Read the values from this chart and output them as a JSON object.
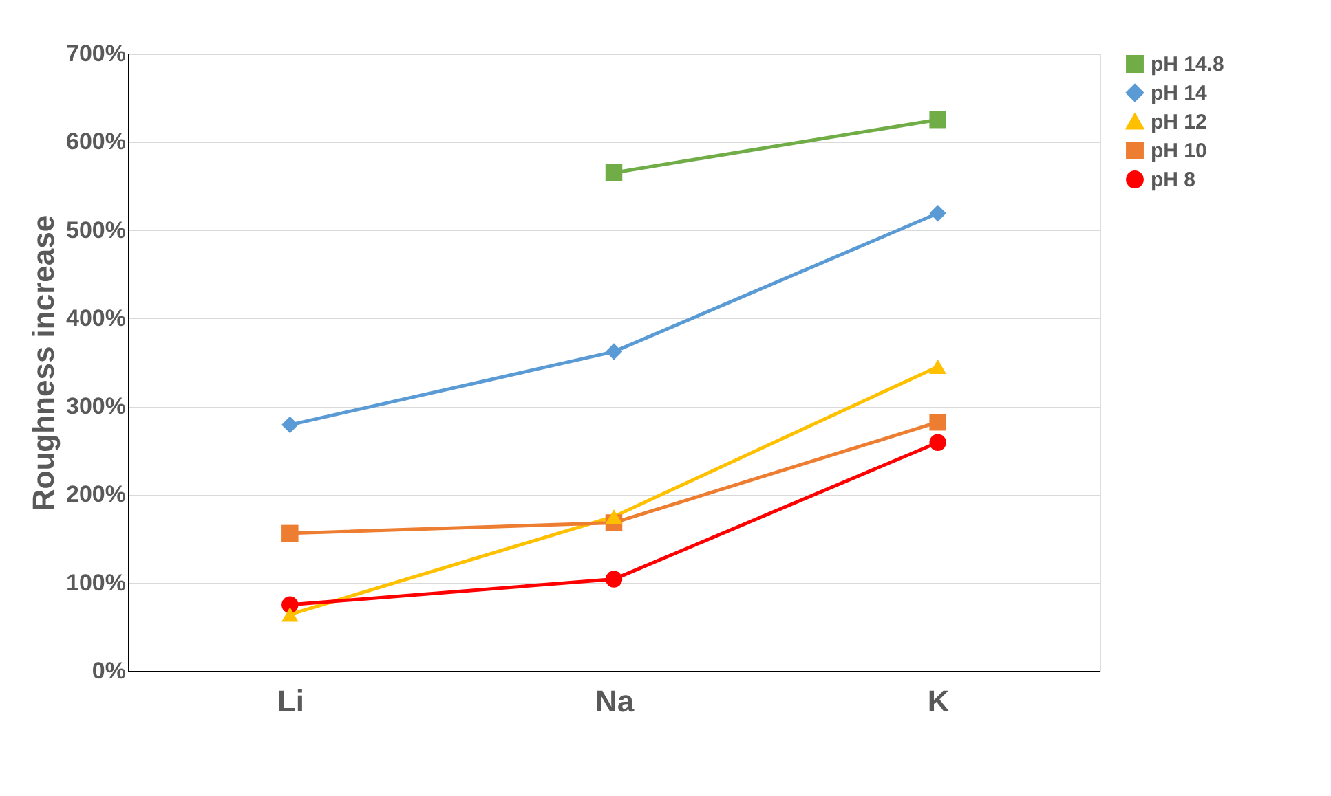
{
  "chart_data": {
    "type": "line",
    "ylabel": "Roughness increase",
    "categories": [
      "Li",
      "Na",
      "K"
    ],
    "series": [
      {
        "name": "pH 14.8",
        "color": "#70ad47",
        "marker": "square",
        "values": [
          null,
          565,
          625
        ]
      },
      {
        "name": "pH 14",
        "color": "#5b9bd5",
        "marker": "diamond",
        "values": [
          279,
          362,
          519
        ]
      },
      {
        "name": "pH 12",
        "color": "#ffc000",
        "marker": "triangle",
        "values": [
          64,
          175,
          345
        ]
      },
      {
        "name": "pH 10",
        "color": "#ed7d31",
        "marker": "square",
        "values": [
          156,
          168,
          282
        ]
      },
      {
        "name": "pH 8",
        "color": "#ff0000",
        "marker": "circle",
        "values": [
          75,
          104,
          259
        ]
      }
    ],
    "ylim": [
      0,
      700
    ],
    "yticks": [
      {
        "value": 0,
        "label": "0%"
      },
      {
        "value": 100,
        "label": "100%"
      },
      {
        "value": 200,
        "label": "200%"
      },
      {
        "value": 300,
        "label": "300%"
      },
      {
        "value": 400,
        "label": "400%"
      },
      {
        "value": 500,
        "label": "500%"
      },
      {
        "value": 600,
        "label": "600%"
      },
      {
        "value": 700,
        "label": "700%"
      }
    ],
    "grid": "y",
    "legend": "right",
    "line_style": "solid"
  }
}
